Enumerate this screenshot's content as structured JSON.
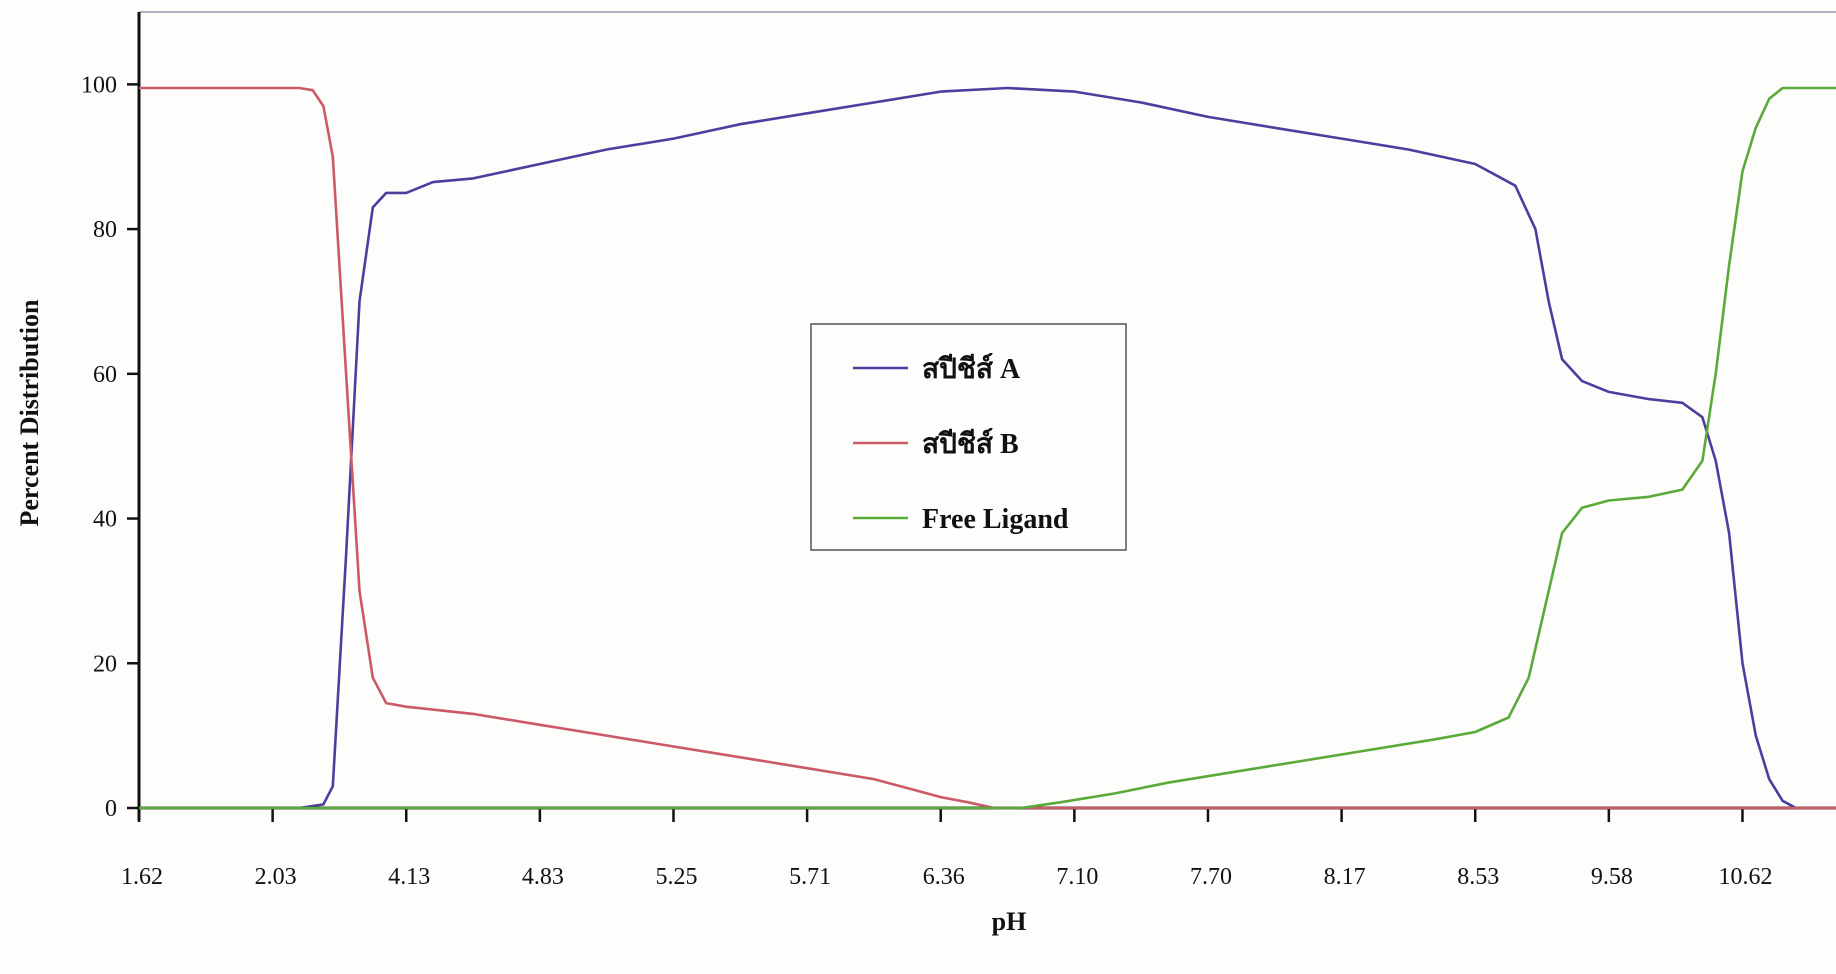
{
  "chart_data": {
    "type": "line",
    "xlabel": "pH",
    "ylabel": "Percent Distribution",
    "ylim": [
      0,
      110
    ],
    "y_ticks": [
      0,
      20,
      40,
      60,
      80,
      100
    ],
    "x_tick_labels": [
      "1.62",
      "2.03",
      "4.13",
      "4.83",
      "5.25",
      "5.71",
      "6.36",
      "7.10",
      "7.70",
      "8.17",
      "8.53",
      "9.58",
      "10.62"
    ],
    "x_tick_positions": [
      0,
      1,
      2,
      3,
      4,
      5,
      6,
      7,
      8,
      9,
      10,
      11,
      12
    ],
    "xlim": [
      0,
      12.7
    ],
    "grid": false,
    "legend_position": "center",
    "series": [
      {
        "name": "สปีชีส์ A",
        "color": "#4a3f9e",
        "points": [
          [
            0,
            0
          ],
          [
            1.2,
            0
          ],
          [
            1.38,
            0.5
          ],
          [
            1.45,
            3
          ],
          [
            1.55,
            35
          ],
          [
            1.65,
            70
          ],
          [
            1.75,
            83
          ],
          [
            1.85,
            85
          ],
          [
            2,
            85
          ],
          [
            2.2,
            86.5
          ],
          [
            2.5,
            87
          ],
          [
            3,
            89
          ],
          [
            3.5,
            91
          ],
          [
            4,
            92.5
          ],
          [
            4.5,
            94.5
          ],
          [
            5,
            96
          ],
          [
            5.5,
            97.5
          ],
          [
            6,
            99
          ],
          [
            6.5,
            99.5
          ],
          [
            7,
            99
          ],
          [
            7.5,
            97.5
          ],
          [
            8,
            95.5
          ],
          [
            8.5,
            94
          ],
          [
            9,
            92.5
          ],
          [
            9.5,
            91
          ],
          [
            10,
            89
          ],
          [
            10.3,
            86
          ],
          [
            10.45,
            80
          ],
          [
            10.55,
            70
          ],
          [
            10.65,
            62
          ],
          [
            10.8,
            59
          ],
          [
            11,
            57.5
          ],
          [
            11.3,
            56.5
          ],
          [
            11.55,
            56
          ],
          [
            11.7,
            54
          ],
          [
            11.8,
            48
          ],
          [
            11.9,
            38
          ],
          [
            12,
            20
          ],
          [
            12.1,
            10
          ],
          [
            12.2,
            4
          ],
          [
            12.3,
            1
          ],
          [
            12.4,
            0
          ],
          [
            12.7,
            0
          ]
        ]
      },
      {
        "name": "สปีชีส์ B",
        "color": "#cc5a66",
        "points": [
          [
            0,
            99.5
          ],
          [
            1.2,
            99.5
          ],
          [
            1.3,
            99.2
          ],
          [
            1.38,
            97
          ],
          [
            1.45,
            90
          ],
          [
            1.55,
            60
          ],
          [
            1.65,
            30
          ],
          [
            1.75,
            18
          ],
          [
            1.85,
            14.5
          ],
          [
            2,
            14
          ],
          [
            2.5,
            13
          ],
          [
            3,
            11.5
          ],
          [
            3.5,
            10
          ],
          [
            4,
            8.5
          ],
          [
            4.5,
            7
          ],
          [
            5,
            5.5
          ],
          [
            5.5,
            4
          ],
          [
            5.8,
            2.5
          ],
          [
            6,
            1.5
          ],
          [
            6.2,
            0.8
          ],
          [
            6.4,
            0
          ],
          [
            12.7,
            0
          ]
        ]
      },
      {
        "name": "Free Ligand",
        "color": "#5aaa3a",
        "points": [
          [
            0,
            0
          ],
          [
            6.6,
            0
          ],
          [
            6.9,
            0.8
          ],
          [
            7.3,
            2
          ],
          [
            7.7,
            3.5
          ],
          [
            8.2,
            5
          ],
          [
            8.7,
            6.5
          ],
          [
            9.2,
            8
          ],
          [
            9.7,
            9.5
          ],
          [
            10,
            10.5
          ],
          [
            10.25,
            12.5
          ],
          [
            10.4,
            18
          ],
          [
            10.55,
            30
          ],
          [
            10.65,
            38
          ],
          [
            10.8,
            41.5
          ],
          [
            11,
            42.5
          ],
          [
            11.3,
            43
          ],
          [
            11.55,
            44
          ],
          [
            11.7,
            48
          ],
          [
            11.8,
            60
          ],
          [
            11.9,
            75
          ],
          [
            12,
            88
          ],
          [
            12.1,
            94
          ],
          [
            12.2,
            98
          ],
          [
            12.3,
            99.5
          ],
          [
            12.7,
            99.5
          ]
        ]
      }
    ]
  }
}
